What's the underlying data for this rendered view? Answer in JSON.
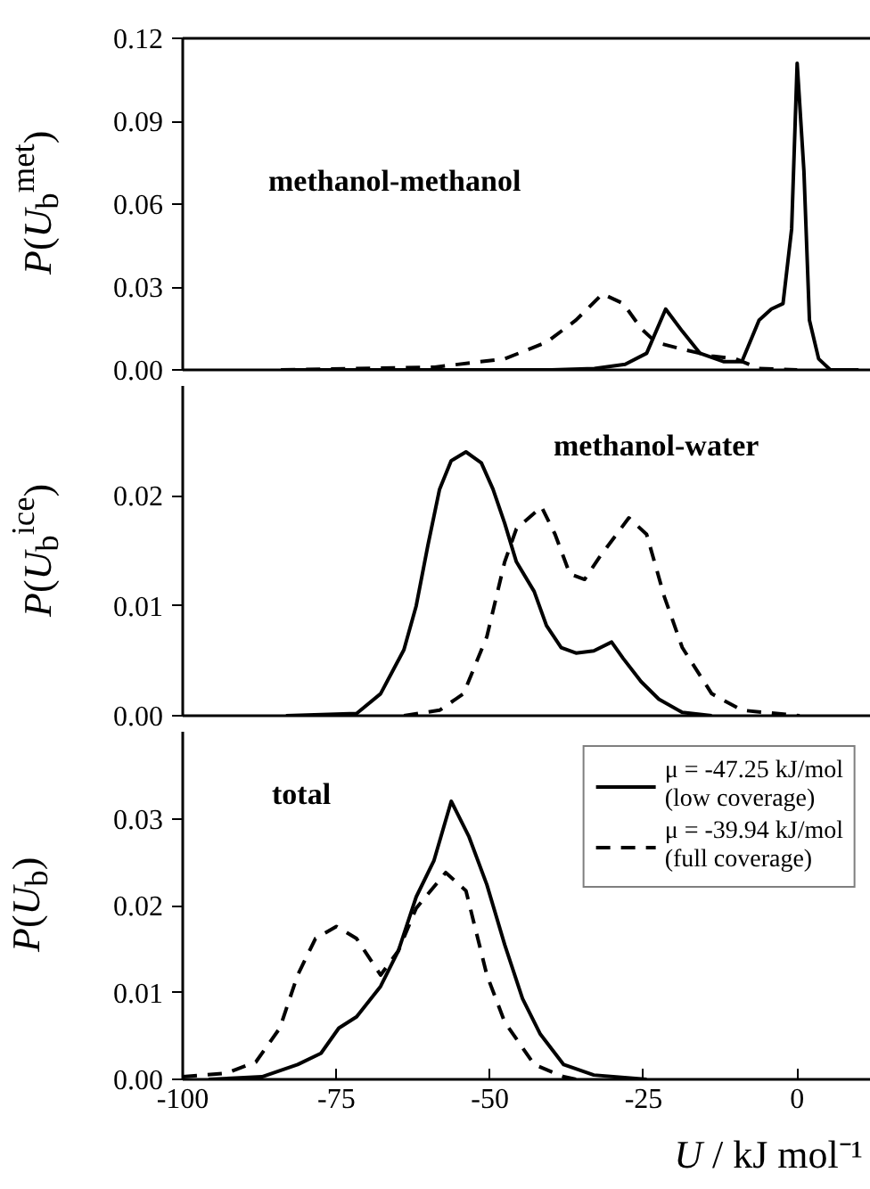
{
  "chart_data": [
    {
      "type": "line",
      "ylabel": "P(U$_{b}$$^{met}$)",
      "annotations": [
        "methanol-methanol"
      ],
      "xlim": [
        -100,
        12
      ],
      "ylim": [
        0,
        0.12
      ],
      "yticks": [
        {
          "value": 0,
          "label": "0.00"
        },
        {
          "value": 0.03,
          "label": "0.03"
        },
        {
          "value": 0.06,
          "label": "0.06"
        },
        {
          "value": 0.09,
          "label": "0.09"
        },
        {
          "value": 0.12,
          "label": "0.12"
        }
      ],
      "tick_labels": "y",
      "grid": false,
      "legend": false,
      "x": [
        -84,
        -40,
        -33,
        -28,
        -24.5,
        -21.4,
        -18.7,
        -15.8,
        -12,
        -9,
        -6.2,
        -4.2,
        -2.3,
        -0.9,
        0,
        1.1,
        2,
        3.5,
        5.4,
        10
      ],
      "series": [
        {
          "color": "#000000",
          "line_style": "solid",
          "values": [
            0,
            0,
            0.0005,
            0.002,
            0.006,
            0.022,
            0.014,
            0.006,
            0.003,
            0.003,
            0.018,
            0.022,
            0.024,
            0.051,
            0.111,
            0.072,
            0.018,
            0.004,
            0,
            0
          ]
        },
        {
          "color": "#000000",
          "line_style": "dashed",
          "x": [
            -84,
            -59,
            -47.6,
            -40.8,
            -36,
            -31.7,
            -28.3,
            -25.4,
            -23,
            -18.7,
            -13.9,
            -10,
            -6.2,
            0
          ],
          "values": [
            0,
            0.001,
            0.004,
            0.01,
            0.018,
            0.0275,
            0.024,
            0.015,
            0.01,
            0.0075,
            0.005,
            0.004,
            0.0005,
            0
          ]
        }
      ]
    },
    {
      "type": "line",
      "ylabel": "P(U$_{b}$$^{ice}$)",
      "annotations": [
        "methanol-water"
      ],
      "xlim": [
        -100,
        12
      ],
      "ylim": [
        0,
        0.03
      ],
      "yticks": [
        {
          "value": 0,
          "label": "0.00"
        },
        {
          "value": 0.01,
          "label": "0.01"
        },
        {
          "value": 0.02,
          "label": "0.02"
        }
      ],
      "tick_labels": "y",
      "grid": false,
      "legend": false,
      "series": [
        {
          "color": "#000000",
          "line_style": "solid",
          "x": [
            -83.2,
            -71.7,
            -67.8,
            -64,
            -62,
            -60.1,
            -58.2,
            -56.3,
            -53.9,
            -51.4,
            -49.5,
            -47.6,
            -45.7,
            -42.8,
            -40.8,
            -38.4,
            -36,
            -33.1,
            -30.2,
            -28.3,
            -25.4,
            -22.5,
            -18.7,
            -13.9
          ],
          "values": [
            0,
            0.0002,
            0.002,
            0.006,
            0.01,
            0.0155,
            0.0206,
            0.0232,
            0.024,
            0.023,
            0.0206,
            0.0175,
            0.014,
            0.0113,
            0.0082,
            0.0062,
            0.0057,
            0.0059,
            0.0067,
            0.0052,
            0.0031,
            0.0015,
            0.0003,
            0
          ]
        },
        {
          "color": "#000000",
          "line_style": "dashed",
          "x": [
            -64,
            -58.2,
            -54.3,
            -50.5,
            -47.6,
            -45.7,
            -41.6,
            -39.4,
            -37,
            -34.6,
            -32.2,
            -27.4,
            -24.5,
            -21.6,
            -18.7,
            -13.9,
            -9,
            0.4
          ],
          "values": [
            0,
            0.0005,
            0.002,
            0.0072,
            0.014,
            0.017,
            0.019,
            0.0165,
            0.0129,
            0.0124,
            0.0144,
            0.018,
            0.0165,
            0.0108,
            0.0062,
            0.002,
            0.0005,
            0
          ]
        }
      ]
    },
    {
      "type": "line",
      "ylabel": "P(U$_{b}$)",
      "xlabel": "U / kJ mol⁻¹",
      "annotations": [
        "total"
      ],
      "xlim": [
        -100,
        12
      ],
      "xticks": [
        -100,
        -75,
        -50,
        -25,
        0
      ],
      "ylim": [
        0,
        0.04
      ],
      "yticks": [
        {
          "value": 0,
          "label": "0.00"
        },
        {
          "value": 0.01,
          "label": "0.01"
        },
        {
          "value": 0.02,
          "label": "0.02"
        },
        {
          "value": 0.03,
          "label": "0.03"
        }
      ],
      "grid": false,
      "legend": "top right",
      "series": [
        {
          "name": "μ = -47.25 kJ/mol\n(low coverage)",
          "color": "#000000",
          "line_style": "solid",
          "x": [
            -95.8,
            -87.1,
            -81.3,
            -77.5,
            -74.6,
            -71.7,
            -67.8,
            -64.9,
            -62,
            -59.1,
            -56.3,
            -53.4,
            -50.5,
            -47.6,
            -44.7,
            -41.8,
            -38,
            -33.1,
            -24.5
          ],
          "values": [
            0,
            0.0003,
            0.0017,
            0.003,
            0.0059,
            0.0072,
            0.0107,
            0.0148,
            0.021,
            0.0252,
            0.032,
            0.0279,
            0.0224,
            0.0155,
            0.0093,
            0.0052,
            0.0017,
            0.0005,
            0
          ]
        },
        {
          "name": "μ = -39.94 kJ/mol\n(full coverage)",
          "color": "#000000",
          "line_style": "dashed",
          "x": [
            -100,
            -92.9,
            -88.1,
            -84.2,
            -81.3,
            -78.4,
            -75,
            -71.7,
            -67.8,
            -64.9,
            -62,
            -57.2,
            -53.9,
            -50.5,
            -47.6,
            -42.8,
            -38,
            -36
          ],
          "values": [
            0.0003,
            0.0007,
            0.002,
            0.0059,
            0.012,
            0.0162,
            0.0176,
            0.0162,
            0.012,
            0.0148,
            0.0197,
            0.0238,
            0.0217,
            0.012,
            0.0066,
            0.0017,
            0.0003,
            0
          ]
        }
      ]
    }
  ]
}
